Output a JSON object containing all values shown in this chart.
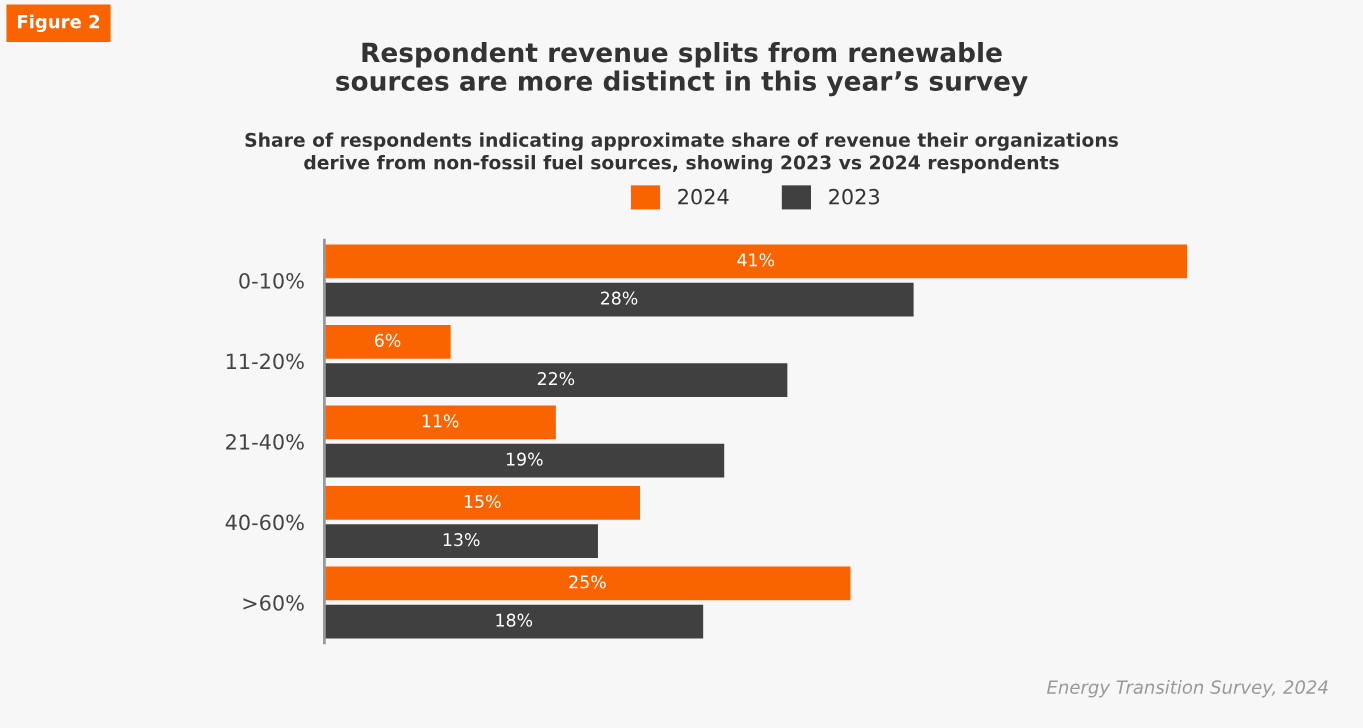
{
  "chart_data": {
    "type": "bar",
    "orientation": "horizontal",
    "title": "Respondent revenue splits from renewable\nsources are more distinct in this year’s survey",
    "subtitle": "Share of respondents indicating approximate share of revenue their organizations\nderive from non-fossil fuel sources, showing 2023 vs 2024 respondents",
    "categories": [
      "0-10%",
      "11-20%",
      "21-40%",
      "40-60%",
      ">60%"
    ],
    "series": [
      {
        "name": "2024",
        "color": "#fa6400",
        "values": [
          41,
          6,
          11,
          15,
          25
        ],
        "value_labels": [
          "41%",
          "6%",
          "11%",
          "15%",
          "25%"
        ]
      },
      {
        "name": "2023",
        "color": "#404040",
        "values": [
          28,
          22,
          19,
          13,
          18
        ],
        "value_labels": [
          "28%",
          "22%",
          "19%",
          "13%",
          "18%"
        ]
      }
    ],
    "legend": "top",
    "grid": false,
    "annotations": [
      "Figure 2",
      "Energy Transition Survey, 2024"
    ]
  }
}
